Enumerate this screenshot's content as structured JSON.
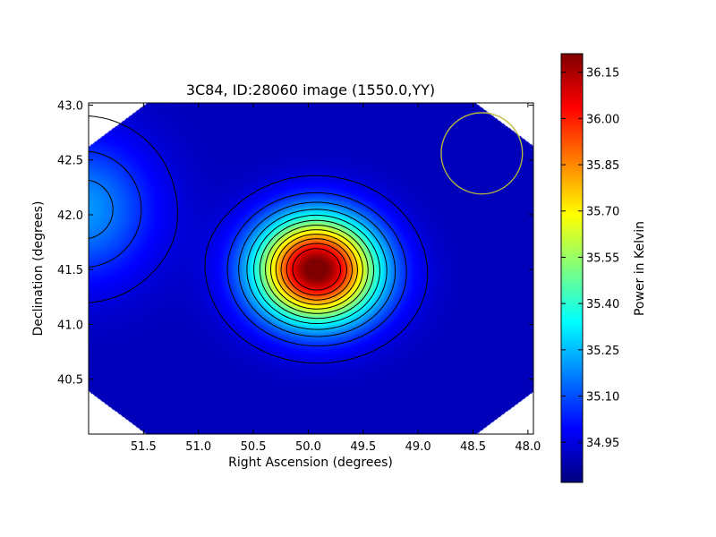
{
  "chart_data": {
    "type": "heatmap",
    "title": "3C84, ID:28060 image (1550.0,YY)",
    "xlabel": "Right Ascension (degrees)",
    "ylabel": "Declination (degrees)",
    "colorbar_label": "Power in Kelvin",
    "x_reversed": true,
    "xlim": [
      52.0,
      47.95
    ],
    "ylim": [
      40.0,
      43.02
    ],
    "x_ticks": [
      51.5,
      51.0,
      50.5,
      50.0,
      49.5,
      49.0,
      48.5,
      48.0
    ],
    "x_tick_labels": [
      "51.5",
      "51.0",
      "50.5",
      "50.0",
      "49.5",
      "49.0",
      "48.5",
      "48.0"
    ],
    "y_ticks": [
      40.5,
      41.0,
      41.5,
      42.0,
      42.5,
      43.0
    ],
    "y_tick_labels": [
      "40.5",
      "41.0",
      "41.5",
      "42.0",
      "42.5",
      "43.0"
    ],
    "colorbar_range": [
      34.82,
      36.21
    ],
    "colorbar_ticks": [
      34.95,
      35.1,
      35.25,
      35.4,
      35.55,
      35.7,
      35.85,
      36.0,
      36.15
    ],
    "colorbar_tick_labels": [
      "34.95",
      "35.10",
      "35.25",
      "35.40",
      "35.55",
      "35.70",
      "35.85",
      "36.00",
      "36.15"
    ],
    "colormap": "jet",
    "colormap_stops": [
      "#00007f",
      "#0000ff",
      "#007fff",
      "#00ffff",
      "#7fff7f",
      "#ffff00",
      "#ff7f00",
      "#ff0000",
      "#7f0000"
    ],
    "peak": {
      "ra": 49.93,
      "dec": 41.52,
      "value": 36.18
    },
    "sources": [
      {
        "ra": 49.93,
        "dec": 41.52,
        "amplitude": 1.22,
        "sigma_ra": 0.38,
        "sigma_dec": 0.33
      },
      {
        "ra": 49.85,
        "dec": 41.35,
        "amplitude": 0.15,
        "sigma_ra": 0.45,
        "sigma_dec": 0.32
      },
      {
        "ra": 52.05,
        "dec": 42.05,
        "amplitude": 0.3,
        "sigma_ra": 0.45,
        "sigma_dec": 0.45
      }
    ],
    "background_level": 34.9,
    "contour_levels": [
      34.95,
      35.05,
      35.15,
      35.25,
      35.35,
      35.45,
      35.55,
      35.65,
      35.75,
      35.85,
      35.95,
      36.05
    ],
    "beam_circle": {
      "ra": 48.42,
      "dec": 42.56,
      "radius_deg": 0.37,
      "color": "#bdbd3c"
    },
    "corner_mask": "octagonal"
  }
}
